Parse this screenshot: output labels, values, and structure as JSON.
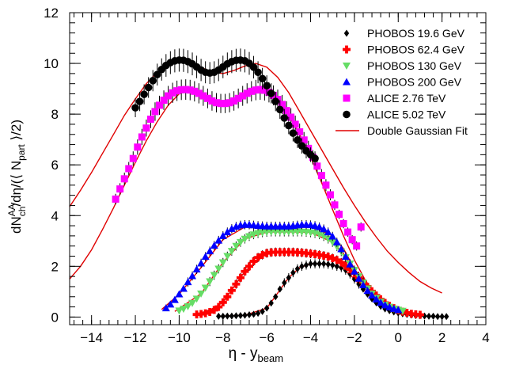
{
  "chart_data": {
    "type": "scatter",
    "xlabel_main": "η - y",
    "xlabel_sub": "beam",
    "ylabel": {
      "p1": "dN",
      "p1_sup": "AA",
      "p1_sub": "ch",
      "p2": "/dη/(⟨ N",
      "p2_sub": "part",
      "p3": " ⟩/2)"
    },
    "xlim": [
      -15,
      4
    ],
    "ylim": [
      -0.3,
      12
    ],
    "xticks": [
      -14,
      -12,
      -10,
      -8,
      -6,
      -4,
      -2,
      0,
      2,
      4
    ],
    "yticks": [
      0,
      2,
      4,
      6,
      8,
      10,
      12
    ],
    "grid": false,
    "legend_position": "top-right",
    "series": [
      {
        "name": "PHOBOS 19.6 GeV",
        "marker": "diamond",
        "color": "#000000",
        "x": [
          -8.2,
          -8.0,
          -7.8,
          -7.6,
          -7.4,
          -7.2,
          -7.0,
          -6.8,
          -6.6,
          -6.4,
          -6.2,
          -6.0,
          -5.8,
          -5.6,
          -5.4,
          -5.2,
          -5.0,
          -4.8,
          -4.6,
          -4.4,
          -4.2,
          -4.0,
          -3.8,
          -3.6,
          -3.4,
          -3.2,
          -3.0,
          -2.8,
          -2.6,
          -2.4,
          -2.2,
          -2.0,
          -1.8,
          -1.6,
          -1.4,
          -1.2,
          -1.0,
          -0.8,
          -0.6,
          -0.4,
          -0.2,
          0.0,
          0.2,
          0.4,
          0.6,
          0.8,
          1.0,
          1.2,
          1.4,
          1.6,
          1.8,
          2.0,
          2.2
        ],
        "y": [
          0.03,
          0.03,
          0.04,
          0.04,
          0.05,
          0.06,
          0.07,
          0.09,
          0.11,
          0.15,
          0.22,
          0.35,
          0.55,
          0.8,
          1.1,
          1.35,
          1.55,
          1.75,
          1.9,
          2.0,
          2.05,
          2.1,
          2.1,
          2.1,
          2.1,
          2.08,
          2.05,
          2.0,
          1.95,
          1.85,
          1.7,
          1.5,
          1.3,
          1.1,
          0.9,
          0.72,
          0.56,
          0.42,
          0.32,
          0.25,
          0.2,
          0.16,
          0.13,
          0.1,
          0.08,
          0.06,
          0.05,
          0.04,
          0.03,
          0.03,
          0.02,
          0.02,
          0.02
        ]
      },
      {
        "name": "PHOBOS 62.4 GeV",
        "marker": "cross",
        "color": "#ff0000",
        "x": [
          -9.2,
          -9.0,
          -8.8,
          -8.6,
          -8.4,
          -8.2,
          -8.0,
          -7.8,
          -7.6,
          -7.4,
          -7.2,
          -7.0,
          -6.8,
          -6.6,
          -6.4,
          -6.2,
          -6.0,
          -5.8,
          -5.6,
          -5.4,
          -5.2,
          -5.0,
          -4.8,
          -4.6,
          -4.4,
          -4.2,
          -4.0,
          -3.8,
          -3.6,
          -3.4,
          -3.2,
          -3.0,
          -2.8,
          -2.6,
          -2.4,
          -2.2,
          -2.0,
          -1.8,
          -1.6,
          -1.4,
          -1.2,
          -1.0,
          -0.8,
          -0.6,
          -0.4,
          -0.2,
          0.0,
          0.2,
          0.4,
          0.6,
          0.8,
          1.0
        ],
        "y": [
          0.1,
          0.12,
          0.15,
          0.2,
          0.28,
          0.4,
          0.58,
          0.8,
          1.05,
          1.3,
          1.55,
          1.8,
          2.0,
          2.2,
          2.35,
          2.45,
          2.52,
          2.55,
          2.56,
          2.56,
          2.56,
          2.56,
          2.56,
          2.55,
          2.54,
          2.52,
          2.5,
          2.48,
          2.45,
          2.42,
          2.38,
          2.32,
          2.25,
          2.15,
          2.02,
          1.88,
          1.72,
          1.55,
          1.38,
          1.2,
          1.02,
          0.85,
          0.7,
          0.56,
          0.44,
          0.35,
          0.27,
          0.21,
          0.17,
          0.13,
          0.11,
          0.09
        ]
      },
      {
        "name": "PHOBOS 130 GeV",
        "marker": "triangle-down",
        "color": "#66dd66",
        "x": [
          -10.0,
          -9.8,
          -9.6,
          -9.4,
          -9.2,
          -9.0,
          -8.8,
          -8.6,
          -8.4,
          -8.2,
          -8.0,
          -7.8,
          -7.6,
          -7.4,
          -7.2,
          -7.0,
          -6.8,
          -6.6,
          -6.4,
          -6.2,
          -6.0,
          -5.8,
          -5.6,
          -5.4,
          -5.2,
          -5.0,
          -4.8,
          -4.6,
          -4.4,
          -4.2,
          -4.0,
          -3.8,
          -3.6,
          -3.4,
          -3.2,
          -3.0,
          -2.8,
          -2.6,
          -2.4,
          -2.2,
          -2.0,
          -1.8,
          -1.6,
          -1.4,
          -1.2,
          -1.0,
          -0.8,
          -0.6,
          -0.4,
          -0.2,
          0.0,
          0.2
        ],
        "y": [
          0.25,
          0.32,
          0.42,
          0.55,
          0.72,
          0.92,
          1.15,
          1.4,
          1.65,
          1.9,
          2.15,
          2.4,
          2.6,
          2.8,
          2.95,
          3.08,
          3.18,
          3.25,
          3.3,
          3.33,
          3.35,
          3.36,
          3.36,
          3.36,
          3.36,
          3.36,
          3.36,
          3.36,
          3.36,
          3.35,
          3.33,
          3.3,
          3.25,
          3.18,
          3.08,
          2.95,
          2.78,
          2.58,
          2.35,
          2.1,
          1.85,
          1.6,
          1.35,
          1.12,
          0.92,
          0.75,
          0.6,
          0.48,
          0.4,
          0.33,
          0.28,
          0.24
        ]
      },
      {
        "name": "PHOBOS 200 GeV",
        "marker": "triangle-up",
        "color": "#0000ff",
        "x": [
          -10.6,
          -10.4,
          -10.2,
          -10.0,
          -9.8,
          -9.6,
          -9.4,
          -9.2,
          -9.0,
          -8.8,
          -8.6,
          -8.4,
          -8.2,
          -8.0,
          -7.8,
          -7.6,
          -7.4,
          -7.2,
          -7.0,
          -6.8,
          -6.6,
          -6.4,
          -6.2,
          -6.0,
          -5.8,
          -5.6,
          -5.4,
          -5.2,
          -5.0,
          -4.8,
          -4.6,
          -4.4,
          -4.2,
          -4.0,
          -3.8,
          -3.6,
          -3.4,
          -3.2,
          -3.0,
          -2.8,
          -2.6,
          -2.4,
          -2.2,
          -2.0,
          -1.8,
          -1.6,
          -1.4,
          -1.2,
          -1.0,
          -0.8,
          -0.6,
          -0.4,
          -0.2,
          0.0
        ],
        "y": [
          0.35,
          0.5,
          0.68,
          0.9,
          1.12,
          1.38,
          1.62,
          1.88,
          2.12,
          2.38,
          2.6,
          2.82,
          3.02,
          3.2,
          3.35,
          3.48,
          3.57,
          3.62,
          3.64,
          3.64,
          3.62,
          3.6,
          3.59,
          3.58,
          3.58,
          3.58,
          3.58,
          3.58,
          3.58,
          3.6,
          3.62,
          3.64,
          3.64,
          3.63,
          3.6,
          3.55,
          3.47,
          3.35,
          3.18,
          2.95,
          2.68,
          2.38,
          2.08,
          1.8,
          1.52,
          1.26,
          1.04,
          0.86,
          0.7,
          0.57,
          0.47,
          0.39,
          0.33,
          0.28
        ]
      },
      {
        "name": "ALICE 2.76 TeV",
        "marker": "square",
        "color": "#ff00ff",
        "x": [
          -12.9,
          -12.7,
          -12.5,
          -12.3,
          -12.1,
          -11.9,
          -11.7,
          -11.5,
          -11.3,
          -11.1,
          -10.9,
          -10.7,
          -10.5,
          -10.3,
          -10.1,
          -9.9,
          -9.7,
          -9.5,
          -9.3,
          -9.1,
          -8.9,
          -8.7,
          -8.5,
          -8.3,
          -8.1,
          -7.9,
          -7.7,
          -7.5,
          -7.3,
          -7.1,
          -6.9,
          -6.7,
          -6.5,
          -6.3,
          -6.1,
          -5.9,
          -5.7,
          -5.5,
          -5.3,
          -5.1,
          -4.9,
          -4.7,
          -4.5,
          -4.3,
          -4.1,
          -3.9,
          -3.7,
          -3.5,
          -3.3,
          -3.1,
          -2.9,
          -2.7,
          -2.5,
          -2.3,
          -2.1,
          -1.9,
          -1.7
        ],
        "y": [
          4.65,
          5.05,
          5.45,
          5.85,
          6.25,
          6.7,
          7.1,
          7.45,
          7.8,
          8.1,
          8.35,
          8.55,
          8.72,
          8.84,
          8.92,
          8.96,
          8.97,
          8.95,
          8.9,
          8.82,
          8.72,
          8.62,
          8.52,
          8.45,
          8.42,
          8.42,
          8.45,
          8.52,
          8.62,
          8.72,
          8.82,
          8.9,
          8.95,
          8.97,
          8.94,
          8.86,
          8.74,
          8.58,
          8.38,
          8.14,
          7.88,
          7.6,
          7.3,
          6.98,
          6.65,
          6.3,
          5.95,
          5.58,
          5.2,
          4.82,
          4.42,
          4.05,
          3.68,
          3.35,
          3.05,
          2.8,
          3.55
        ]
      },
      {
        "name": "ALICE 5.02 TeV",
        "marker": "circle",
        "color": "#000000",
        "x": [
          -12.0,
          -11.8,
          -11.6,
          -11.4,
          -11.2,
          -11.0,
          -10.8,
          -10.6,
          -10.4,
          -10.2,
          -10.0,
          -9.8,
          -9.6,
          -9.4,
          -9.2,
          -9.0,
          -8.8,
          -8.6,
          -8.4,
          -8.2,
          -8.0,
          -7.8,
          -7.6,
          -7.4,
          -7.2,
          -7.0,
          -6.8,
          -6.6,
          -6.4,
          -6.2,
          -6.0,
          -5.8,
          -5.6,
          -5.4,
          -5.2,
          -5.0,
          -4.8,
          -4.6,
          -4.4,
          -4.2,
          -4.0,
          -3.8
        ],
        "y": [
          8.25,
          8.5,
          8.78,
          9.05,
          9.32,
          9.56,
          9.76,
          9.92,
          10.03,
          10.1,
          10.13,
          10.12,
          10.07,
          9.98,
          9.86,
          9.74,
          9.65,
          9.62,
          9.65,
          9.74,
          9.86,
          9.98,
          10.07,
          10.12,
          10.13,
          10.1,
          10.0,
          9.85,
          9.65,
          9.4,
          9.12,
          8.82,
          8.5,
          8.18,
          7.85,
          7.55,
          7.25,
          6.98,
          6.75,
          6.55,
          6.4,
          6.25
        ]
      }
    ],
    "fits": [
      {
        "name": "Double Gaussian Fit",
        "color": "#e00000",
        "curves": [
          {
            "x": [
              -15.0,
              -14.5,
              -14.0,
              -13.5,
              -13.0,
              -12.5,
              -12.0,
              -11.5,
              -11.0,
              -10.5,
              -10.0,
              -9.5,
              -9.0,
              -8.5,
              -8.0,
              -7.5,
              -7.0,
              -6.5,
              -6.0,
              -5.5,
              -5.0,
              -4.5,
              -4.0,
              -3.5,
              -3.0,
              -2.5,
              -2.0,
              -1.5,
              -1.0,
              -0.5,
              0.0,
              0.5,
              1.0,
              1.5,
              2.0
            ],
            "y": [
              4.35,
              5.0,
              5.7,
              6.45,
              7.2,
              7.95,
              8.6,
              9.2,
              9.65,
              9.95,
              10.1,
              10.08,
              9.85,
              9.65,
              9.6,
              9.72,
              9.9,
              10.0,
              9.85,
              9.45,
              8.85,
              8.1,
              7.35,
              6.6,
              5.85,
              5.1,
              4.4,
              3.75,
              3.15,
              2.6,
              2.15,
              1.75,
              1.4,
              1.15,
              0.95
            ]
          },
          {
            "x": [
              -15.0,
              -14.5,
              -14.0,
              -13.5,
              -13.0,
              -12.5,
              -12.0,
              -11.5,
              -11.0,
              -10.5,
              -10.0,
              -9.5,
              -9.0,
              -8.5,
              -8.0,
              -7.5,
              -7.0,
              -6.5,
              -6.0,
              -5.5,
              -5.0,
              -4.5,
              -4.0,
              -3.5,
              -3.0,
              -2.5,
              -2.0,
              -1.5,
              -1.0,
              -0.5
            ],
            "y": [
              1.5,
              2.0,
              2.65,
              3.45,
              4.3,
              5.2,
              6.1,
              6.95,
              7.7,
              8.35,
              8.8,
              8.95,
              8.82,
              8.55,
              8.42,
              8.5,
              8.78,
              8.98,
              8.92,
              8.55,
              7.95,
              7.2,
              6.3,
              5.3,
              4.25,
              3.2,
              2.25,
              1.45,
              0.85,
              0.45
            ]
          },
          {
            "x": [
              -10.8,
              -10.0,
              -9.0,
              -8.0,
              -7.0,
              -6.0,
              -5.0,
              -4.0,
              -3.0,
              -2.5,
              -2.0,
              -1.5,
              -1.0,
              -0.5,
              0.0
            ],
            "y": [
              0.3,
              0.9,
              1.95,
              3.05,
              3.55,
              3.58,
              3.58,
              3.62,
              3.2,
              2.7,
              1.9,
              1.3,
              0.8,
              0.45,
              0.28
            ]
          },
          {
            "x": [
              -10.2,
              -9.0,
              -8.0,
              -7.0,
              -6.0,
              -5.0,
              -4.0,
              -3.0,
              -2.5,
              -2.0,
              -1.5,
              -1.0,
              -0.5,
              0.0,
              0.3
            ],
            "y": [
              0.22,
              0.92,
              2.15,
              3.08,
              3.35,
              3.36,
              3.34,
              2.95,
              2.5,
              1.85,
              1.2,
              0.78,
              0.45,
              0.28,
              0.22
            ]
          },
          {
            "x": [
              -9.2,
              -8.5,
              -8.0,
              -7.0,
              -6.0,
              -5.0,
              -4.0,
              -3.0,
              -2.5,
              -2.0,
              -1.5,
              -1.0,
              -0.5,
              0.0,
              0.5,
              1.0
            ],
            "y": [
              0.1,
              0.32,
              0.58,
              1.8,
              2.52,
              2.56,
              2.5,
              2.32,
              2.1,
              1.72,
              1.25,
              0.85,
              0.52,
              0.3,
              0.17,
              0.09
            ]
          },
          {
            "x": [
              -8.2,
              -7.0,
              -6.0,
              -5.5,
              -5.0,
              -4.5,
              -4.0,
              -3.5,
              -3.0,
              -2.5,
              -2.0,
              -1.5,
              -1.0,
              -0.5,
              0.0,
              0.5,
              1.0,
              1.5,
              2.0,
              2.2
            ],
            "y": [
              0.03,
              0.07,
              0.35,
              0.95,
              1.55,
              1.95,
              2.1,
              2.1,
              2.05,
              1.9,
              1.5,
              1.0,
              0.56,
              0.28,
              0.16,
              0.09,
              0.05,
              0.03,
              0.02,
              0.02
            ]
          }
        ]
      }
    ]
  }
}
